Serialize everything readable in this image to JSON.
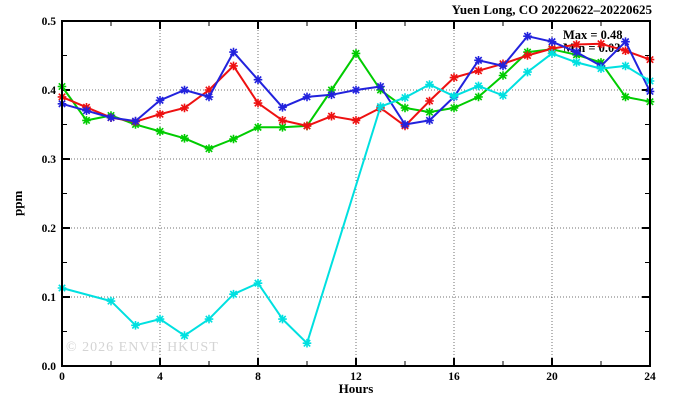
{
  "title": "Yuen Long, CO 20220622–20220625",
  "watermark": "© 2026 ENVF, HKUST",
  "annotations": {
    "max": "Max = 0.48",
    "min": "Min = 0.03"
  },
  "chart_data": {
    "type": "line",
    "title": "Yuen Long, CO 20220622–20220625",
    "xlabel": "Hours",
    "ylabel": "ppm",
    "xlim": [
      0,
      24
    ],
    "ylim": [
      0.0,
      0.5
    ],
    "x_major_ticks": [
      0,
      4,
      8,
      12,
      16,
      20,
      24
    ],
    "x_minor_step": 2,
    "y_major_ticks": [
      0.0,
      0.1,
      0.2,
      0.3,
      0.4,
      0.5
    ],
    "y_minor_step": 0.05,
    "grid": true,
    "legend": "none",
    "x": [
      0,
      1,
      2,
      3,
      4,
      5,
      6,
      7,
      8,
      9,
      10,
      11,
      12,
      13,
      14,
      15,
      16,
      17,
      18,
      19,
      20,
      21,
      22,
      23,
      24
    ],
    "series": [
      {
        "name": "green",
        "color": "#00cc00",
        "values": [
          0.405,
          0.356,
          0.363,
          0.35,
          0.34,
          0.33,
          0.315,
          0.329,
          0.346,
          0.346,
          0.348,
          0.4,
          0.453,
          0.4,
          0.374,
          0.368,
          0.374,
          0.39,
          0.421,
          0.455,
          0.459,
          0.451,
          0.44,
          0.39,
          0.383
        ]
      },
      {
        "name": "red",
        "color": "#ee1111",
        "values": [
          0.39,
          0.375,
          0.36,
          0.354,
          0.365,
          0.374,
          0.4,
          0.435,
          0.381,
          0.356,
          0.348,
          0.362,
          0.356,
          0.374,
          0.348,
          0.384,
          0.418,
          0.428,
          0.438,
          0.45,
          0.46,
          0.466,
          0.467,
          0.457,
          0.444
        ]
      },
      {
        "name": "blue",
        "color": "#2222dd",
        "values": [
          0.38,
          0.37,
          0.36,
          0.355,
          0.385,
          0.4,
          0.39,
          0.455,
          0.415,
          0.375,
          0.39,
          0.393,
          0.4,
          0.405,
          0.35,
          0.356,
          0.39,
          0.443,
          0.435,
          0.478,
          0.47,
          0.455,
          0.435,
          0.47,
          0.398
        ]
      },
      {
        "name": "cyan",
        "color": "#00e0e0",
        "values": [
          0.113,
          null,
          0.094,
          0.059,
          0.068,
          0.044,
          0.068,
          0.104,
          0.12,
          0.068,
          0.033,
          null,
          null,
          0.376,
          0.389,
          0.408,
          0.391,
          0.406,
          0.392,
          0.426,
          0.453,
          0.44,
          0.431,
          0.435,
          0.413
        ]
      }
    ],
    "stats": {
      "max": 0.48,
      "min": 0.03
    }
  }
}
